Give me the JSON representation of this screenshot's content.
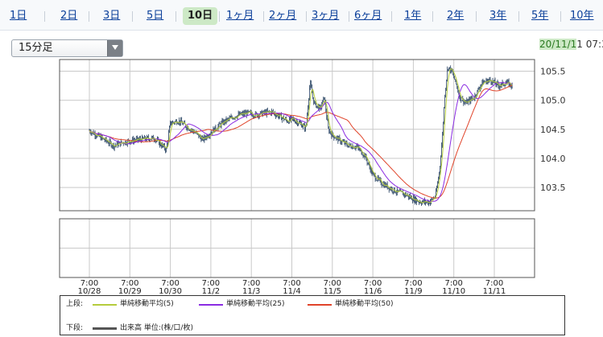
{
  "tabs": [
    {
      "label": "1日",
      "active": false
    },
    {
      "label": "2日",
      "active": false
    },
    {
      "label": "3日",
      "active": false
    },
    {
      "label": "5日",
      "active": false
    },
    {
      "label": "10日",
      "active": true
    },
    {
      "label": "1ヶ月",
      "active": false
    },
    {
      "label": "2ヶ月",
      "active": false
    },
    {
      "label": "3ヶ月",
      "active": false
    },
    {
      "label": "6ヶ月",
      "active": false
    },
    {
      "label": "1年",
      "active": false
    },
    {
      "label": "2年",
      "active": false
    },
    {
      "label": "3年",
      "active": false
    },
    {
      "label": "5年",
      "active": false
    },
    {
      "label": "10年",
      "active": false
    }
  ],
  "timeframe": {
    "selected": "15分足"
  },
  "timestamp": {
    "highlight": "20/11/1",
    "rest": "1 07:3"
  },
  "legend": {
    "upper_label": "上段:",
    "lower_label": "下段:",
    "ma5": "単純移動平均(5)",
    "ma25": "単純移動平均(25)",
    "ma50": "単純移動平均(50)",
    "volume": "出来高 単位:(株/口/枚)"
  },
  "colors": {
    "ma5": "#b5cc3c",
    "ma25": "#8a2be2",
    "ma50": "#e0442a",
    "candles": "#1f3b5c",
    "volume": "#555555",
    "active_tab": "#cde9c6"
  },
  "chart_data": {
    "type": "line",
    "x": [
      "7:00\n10/28",
      "7:00\n10/29",
      "7:00\n10/30",
      "7:00\n11/2",
      "7:00\n11/3",
      "7:00\n11/4",
      "7:00\n11/5",
      "7:00\n11/6",
      "7:00\n11/9",
      "7:00\n11/10",
      "7:00\n11/11"
    ],
    "x_ticks": [
      {
        "time": "7:00",
        "date": "10/28"
      },
      {
        "time": "7:00",
        "date": "10/29"
      },
      {
        "time": "7:00",
        "date": "10/30"
      },
      {
        "time": "7:00",
        "date": "11/2"
      },
      {
        "time": "7:00",
        "date": "11/3"
      },
      {
        "time": "7:00",
        "date": "11/4"
      },
      {
        "time": "7:00",
        "date": "11/5"
      },
      {
        "time": "7:00",
        "date": "11/6"
      },
      {
        "time": "7:00",
        "date": "11/9"
      },
      {
        "time": "7:00",
        "date": "11/10"
      },
      {
        "time": "7:00",
        "date": "11/11"
      }
    ],
    "y_ticks": [
      "105.5",
      "105.0",
      "104.5",
      "104.0",
      "103.5"
    ],
    "y_tick_values": [
      105.5,
      105.0,
      104.5,
      104.0,
      103.5
    ],
    "ylim": [
      103.1,
      105.7
    ],
    "price_series": [
      [
        0,
        104.48
      ],
      [
        0.3,
        104.35
      ],
      [
        0.6,
        104.22
      ],
      [
        0.8,
        104.27
      ],
      [
        1.0,
        104.3
      ],
      [
        1.3,
        104.33
      ],
      [
        1.6,
        104.35
      ],
      [
        1.9,
        104.15
      ],
      [
        2.0,
        104.6
      ],
      [
        2.2,
        104.65
      ],
      [
        2.4,
        104.55
      ],
      [
        2.6,
        104.45
      ],
      [
        2.8,
        104.32
      ],
      [
        3.0,
        104.45
      ],
      [
        3.3,
        104.62
      ],
      [
        3.6,
        104.73
      ],
      [
        3.9,
        104.78
      ],
      [
        4.1,
        104.75
      ],
      [
        4.3,
        104.78
      ],
      [
        4.5,
        104.8
      ],
      [
        4.7,
        104.72
      ],
      [
        4.9,
        104.64
      ],
      [
        5.0,
        104.68
      ],
      [
        5.2,
        104.6
      ],
      [
        5.35,
        104.52
      ],
      [
        5.45,
        105.3
      ],
      [
        5.55,
        104.95
      ],
      [
        5.7,
        104.85
      ],
      [
        5.8,
        105.05
      ],
      [
        5.9,
        104.5
      ],
      [
        6.0,
        104.4
      ],
      [
        6.2,
        104.3
      ],
      [
        6.4,
        104.22
      ],
      [
        6.6,
        104.2
      ],
      [
        6.8,
        104.05
      ],
      [
        7.0,
        103.72
      ],
      [
        7.2,
        103.58
      ],
      [
        7.4,
        103.5
      ],
      [
        7.6,
        103.42
      ],
      [
        7.8,
        103.38
      ],
      [
        8.0,
        103.3
      ],
      [
        8.2,
        103.25
      ],
      [
        8.4,
        103.25
      ],
      [
        8.55,
        103.35
      ],
      [
        8.65,
        103.8
      ],
      [
        8.72,
        104.4
      ],
      [
        8.78,
        105.1
      ],
      [
        8.85,
        105.58
      ],
      [
        8.95,
        105.5
      ],
      [
        9.05,
        105.3
      ],
      [
        9.15,
        105.05
      ],
      [
        9.3,
        104.95
      ],
      [
        9.5,
        105.05
      ],
      [
        9.7,
        105.3
      ],
      [
        9.9,
        105.35
      ],
      [
        10.1,
        105.25
      ],
      [
        10.3,
        105.3
      ],
      [
        10.45,
        105.25
      ]
    ]
  }
}
